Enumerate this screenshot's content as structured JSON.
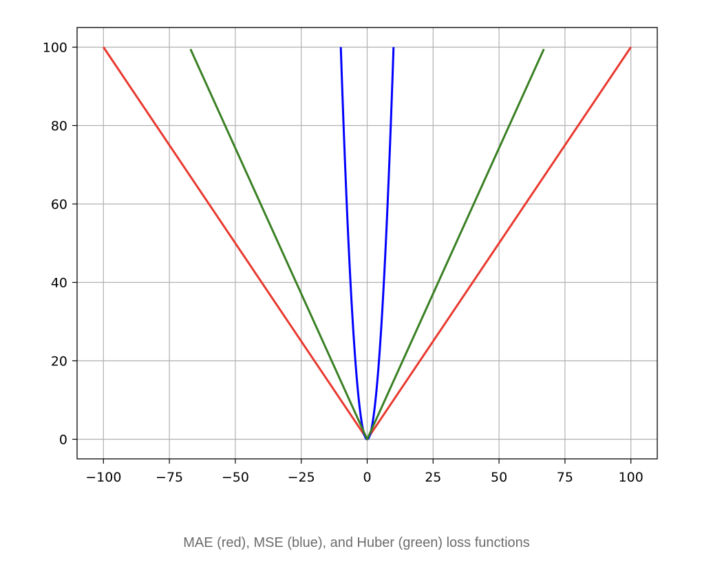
{
  "chart_data": {
    "type": "line",
    "title": "",
    "xlabel": "",
    "ylabel": "",
    "xlim": [
      -110,
      110
    ],
    "ylim": [
      -5,
      105
    ],
    "grid": true,
    "legend": "none",
    "x_ticks": [
      -100,
      -75,
      -50,
      -25,
      0,
      25,
      50,
      75,
      100
    ],
    "x_tick_labels": [
      "−100",
      "−75",
      "−50",
      "−25",
      "0",
      "25",
      "50",
      "75",
      "100"
    ],
    "y_ticks": [
      0,
      20,
      40,
      60,
      80,
      100
    ],
    "y_tick_labels": [
      "0",
      "20",
      "40",
      "60",
      "80",
      "100"
    ],
    "series": [
      {
        "color": "#e8392f",
        "x": [
          -100,
          0,
          100
        ],
        "y": [
          100,
          0,
          100
        ]
      },
      {
        "color": "#0000ff",
        "x": [
          -10,
          -8,
          -6,
          -4,
          -2,
          0,
          2,
          4,
          6,
          8,
          10
        ],
        "y": [
          100,
          64,
          36,
          16,
          4,
          0,
          4,
          16,
          36,
          64,
          100
        ]
      },
      {
        "color": "#3a8024",
        "x": [
          -67,
          0,
          67
        ],
        "y": [
          99.5,
          0,
          99.5
        ]
      }
    ]
  },
  "caption": "MAE (red), MSE (blue), and Huber (green) loss functions"
}
